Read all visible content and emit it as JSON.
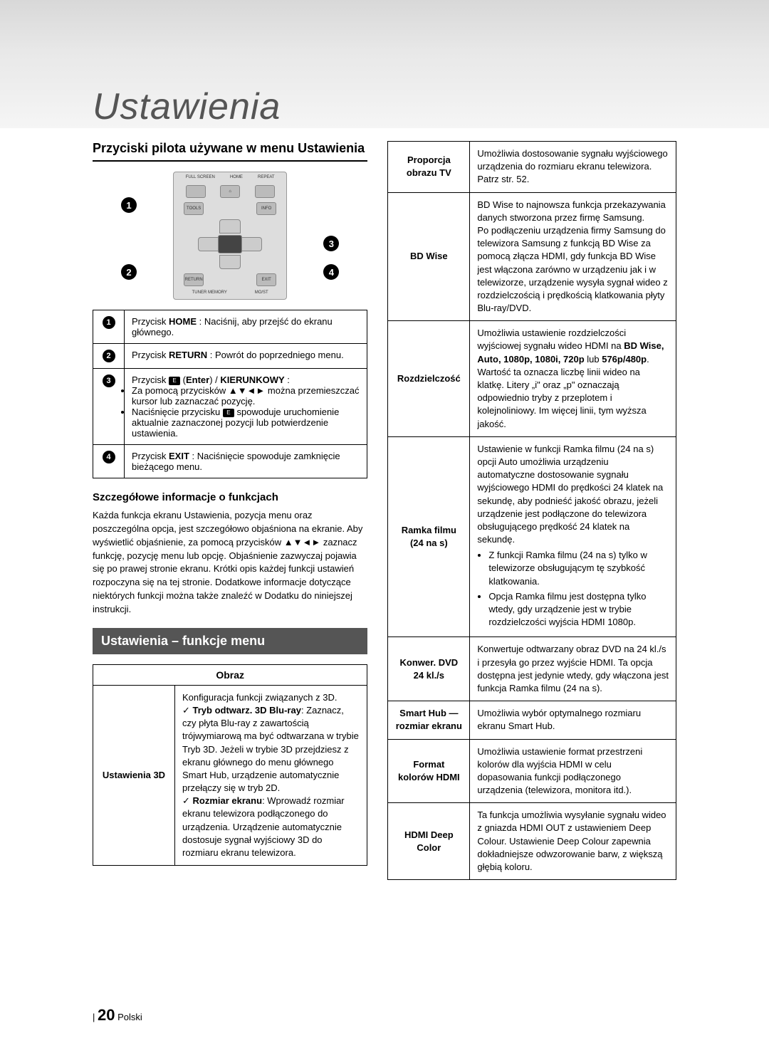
{
  "header": {
    "title": "Ustawienia"
  },
  "left": {
    "h2": "Przyciski pilota używane w menu Ustawienia",
    "remote_labels": {
      "fullscreen": "FULL SCREEN",
      "home": "HOME",
      "repeat": "REPEAT",
      "tools": "TOOLS",
      "info": "INFO",
      "return": "RETURN",
      "exit": "EXIT",
      "tuner": "TUNER MEMORY",
      "moist": "MO/ST"
    },
    "markers": {
      "m1": "1",
      "m2": "2",
      "m3": "3",
      "m4": "4"
    },
    "btn_rows": [
      {
        "num": "1",
        "html": "Przycisk <b>HOME</b> : Naciśnij, aby przejść do ekranu głównego."
      },
      {
        "num": "2",
        "html": "Przycisk <b>RETURN</b> : Powrót do poprzedniego menu."
      },
      {
        "num": "3",
        "html": "Przycisk <span class='enter-icon'>E</span> (<b>Enter</b>) / <b>KIERUNKOWY</b> :<ul><li>Za pomocą przycisków ▲▼◄► można przemieszczać kursor lub zaznaczać pozycję.</li><li>Naciśnięcie przycisku <span class='enter-icon'>E</span> spowoduje uruchomienie aktualnie zaznaczonej pozycji lub potwierdzenie ustawienia.</li></ul>"
      },
      {
        "num": "4",
        "html": "Przycisk <b>EXIT</b> : Naciśnięcie spowoduje zamknięcie bieżącego menu."
      }
    ],
    "h3": "Szczegółowe informacje o funkcjach",
    "para": "Każda funkcja ekranu Ustawienia, pozycja menu oraz poszczególna opcja, jest szczegółowo objaśniona na ekranie. Aby wyświetlić objaśnienie, za pomocą przycisków ▲▼◄► zaznacz funkcję, pozycję menu lub opcję. Objaśnienie zazwyczaj pojawia się po prawej stronie ekranu. Krótki opis każdej funkcji ustawień rozpoczyna się na tej stronie. Dodatkowe informacje dotyczące niektórych funkcji można także znaleźć w Dodatku do niniejszej instrukcji.",
    "section_bar": "Ustawienia – funkcje menu",
    "obraz_header": "Obraz",
    "obraz_row": {
      "label": "Ustawienia 3D",
      "html": "Konfiguracja funkcji związanych z 3D.<br>✓ <b>Tryb odtwarz. 3D Blu-ray</b>: Zaznacz, czy płyta Blu-ray z zawartością trójwymiarową ma być odtwarzana w trybie Tryb 3D. Jeżeli w trybie 3D przejdziesz z ekranu głównego do menu głównego Smart Hub, urządzenie automatycznie przełączy się w tryb 2D.<br>✓ <b>Rozmiar ekranu</b>: Wprowadź rozmiar ekranu telewizora podłączonego do urządzenia. Urządzenie automatycznie dostosuje sygnał wyjściowy 3D do rozmiaru ekranu telewizora."
    }
  },
  "right": {
    "rows": [
      {
        "label": "Proporcja obrazu TV",
        "html": "Umożliwia dostosowanie sygnału wyjściowego urządzenia do rozmiaru ekranu telewizora. Patrz str. 52."
      },
      {
        "label": "BD Wise",
        "html": "BD Wise to najnowsza funkcja przekazywania danych stworzona przez firmę Samsung.<br>Po podłączeniu urządzenia firmy Samsung do telewizora Samsung z funkcją BD Wise za pomocą złącza HDMI, gdy funkcja BD Wise jest włączona zarówno w urządzeniu jak i w telewizorze, urządzenie wysyła sygnał wideo z rozdzielczością i prędkością klatkowania płyty Blu-ray/DVD."
      },
      {
        "label": "Rozdzielczość",
        "html": "Umożliwia ustawienie rozdzielczości wyjściowej sygnału wideo HDMI na <b>BD Wise, Auto, 1080p, 1080i, 720p</b> lub <b>576p/480p</b>. Wartość ta oznacza liczbę linii wideo na klatkę. Litery „i\" oraz „p\" oznaczają odpowiednio tryby z przeplotem i kolejnoliniowy. Im więcej linii, tym wyższa jakość."
      },
      {
        "label": "Ramka filmu (24 na s)",
        "html": "Ustawienie w funkcji Ramka filmu (24 na s) opcji Auto umożliwia urządzeniu automatyczne dostosowanie sygnału wyjściowego HDMI do prędkości 24 klatek na sekundę, aby podnieść jakość obrazu, jeżeli urządzenie jest podłączone do telewizora obsługującego prędkość 24 klatek na sekundę.<ul><li>Z funkcji Ramka filmu (24 na s) tylko w telewizorze obsługującym tę szybkość klatkowania.</li><li>Opcja Ramka filmu jest dostępna tylko wtedy, gdy urządzenie jest w trybie rozdzielczości wyjścia HDMI 1080p.</li></ul>"
      },
      {
        "label": "Konwer. DVD 24 kl./s",
        "html": "Konwertuje odtwarzany obraz DVD na 24 kl./s i przesyła go przez wyjście HDMI. Ta opcja dostępna jest jedynie wtedy, gdy włączona jest funkcja Ramka filmu (24 na s)."
      },
      {
        "label": "Smart Hub — rozmiar ekranu",
        "html": "Umożliwia wybór optymalnego rozmiaru ekranu Smart Hub."
      },
      {
        "label": "Format kolorów HDMI",
        "html": "Umożliwia ustawienie format przestrzeni kolorów dla wyjścia HDMI w celu dopasowania funkcji podłączonego urządzenia (telewizora, monitora itd.)."
      },
      {
        "label": "HDMI Deep Color",
        "html": "Ta funkcja umożliwia wysyłanie sygnału wideo z gniazda HDMI OUT z ustawieniem Deep Colour. Ustawienie Deep Colour zapewnia dokładniejsze odwzorowanie barw, z większą głębią koloru."
      }
    ]
  },
  "footer": {
    "page": "20",
    "lang": "Polski"
  }
}
